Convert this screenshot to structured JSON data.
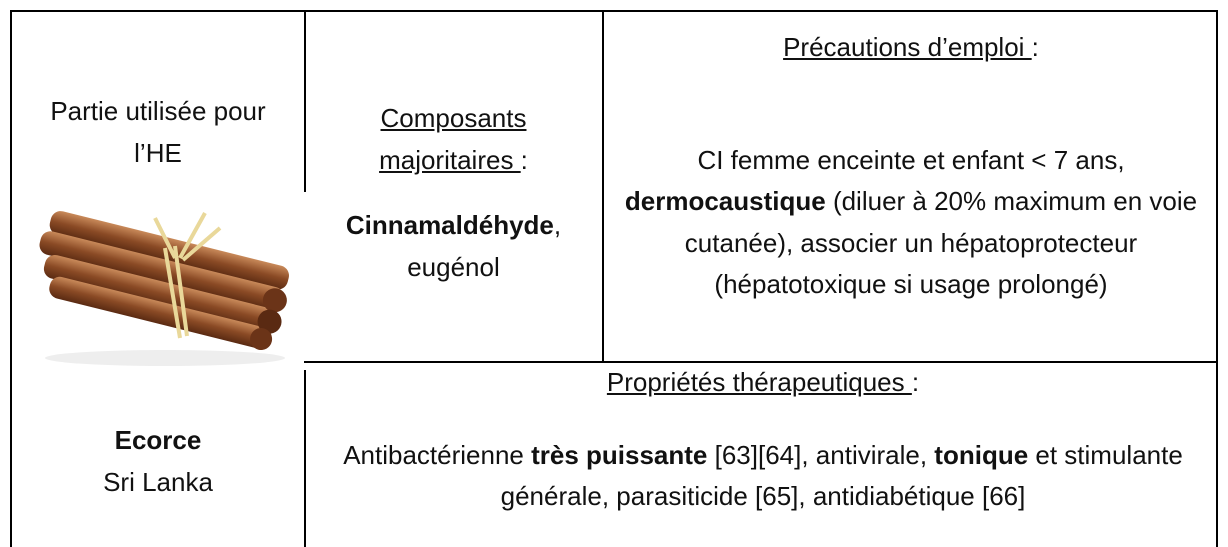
{
  "left": {
    "title": [
      "Partie utilisée pour",
      "l’HE"
    ],
    "part": "Ecorce",
    "origin": "Sri Lanka"
  },
  "components": {
    "heading": [
      "Composants",
      "majoritaires ",
      ":"
    ],
    "main": "Cinnamaldéhyde",
    "rest": [
      ",",
      "eugénol"
    ]
  },
  "precautions": {
    "heading": [
      "Précautions d’emploi ",
      ":"
    ],
    "body": [
      "CI femme enceinte et enfant < 7 ans, ",
      "dermocaustique",
      " (diluer à 20% maximum en voie cutanée), associer un hépatoprotecteur (hépatotoxique si usage prolongé)"
    ]
  },
  "properties": {
    "heading": [
      "Propriétés thérapeutiques ",
      ":"
    ],
    "body": [
      "Antibactérienne ",
      "très puissante",
      " [63][64], antivirale, ",
      "tonique",
      " et stimulante générale, parasiticide [65], antidiabétique [66]"
    ]
  }
}
